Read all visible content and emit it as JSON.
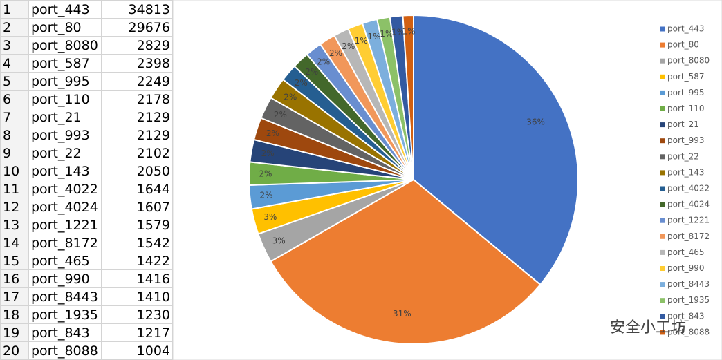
{
  "table": {
    "rows": [
      [
        1,
        "port_443",
        34813
      ],
      [
        2,
        "port_80",
        29676
      ],
      [
        3,
        "port_8080",
        2829
      ],
      [
        4,
        "port_587",
        2398
      ],
      [
        5,
        "port_995",
        2249
      ],
      [
        6,
        "port_110",
        2178
      ],
      [
        7,
        "port_21",
        2129
      ],
      [
        8,
        "port_993",
        2129
      ],
      [
        9,
        "port_22",
        2102
      ],
      [
        10,
        "port_143",
        2050
      ],
      [
        11,
        "port_4022",
        1644
      ],
      [
        12,
        "port_4024",
        1607
      ],
      [
        13,
        "port_1221",
        1579
      ],
      [
        14,
        "port_8172",
        1542
      ],
      [
        15,
        "port_465",
        1422
      ],
      [
        16,
        "port_990",
        1416
      ],
      [
        17,
        "port_8443",
        1410
      ],
      [
        18,
        "port_1935",
        1230
      ],
      [
        19,
        "port_843",
        1217
      ],
      [
        20,
        "port_8088",
        1004
      ]
    ]
  },
  "chart_data": {
    "type": "pie",
    "categories": [
      "port_443",
      "port_80",
      "port_8080",
      "port_587",
      "port_995",
      "port_110",
      "port_21",
      "port_993",
      "port_22",
      "port_143",
      "port_4022",
      "port_4024",
      "port_1221",
      "port_8172",
      "port_465",
      "port_990",
      "port_8443",
      "port_1935",
      "port_843",
      "port_8088"
    ],
    "values": [
      36.03,
      30.71,
      2.93,
      2.5,
      2.33,
      2.25,
      2.2,
      2.2,
      2.18,
      2.12,
      1.7,
      1.66,
      1.63,
      1.6,
      1.5,
      1.47,
      1.46,
      1.27,
      1.26,
      1.04
    ],
    "value_labels": [
      "36%",
      "31%",
      "3%",
      "3%",
      "2%",
      "2%",
      "2%",
      "2%",
      "2%",
      "2%",
      "2%",
      "2%",
      "2%",
      "2%",
      "2%",
      "1%",
      "1%",
      "1%",
      "1%",
      "1%"
    ],
    "colors": [
      "#4472c4",
      "#ed7d31",
      "#a5a5a5",
      "#ffc000",
      "#5b9bd5",
      "#70ad47",
      "#264478",
      "#9e480e",
      "#636363",
      "#997300",
      "#255e91",
      "#43682b",
      "#698ed0",
      "#f1975a",
      "#b7b7b7",
      "#ffcd33",
      "#7cafdd",
      "#8cc168",
      "#335aa1",
      "#d26012"
    ],
    "legend": "right"
  },
  "watermark": "安全小工坊"
}
